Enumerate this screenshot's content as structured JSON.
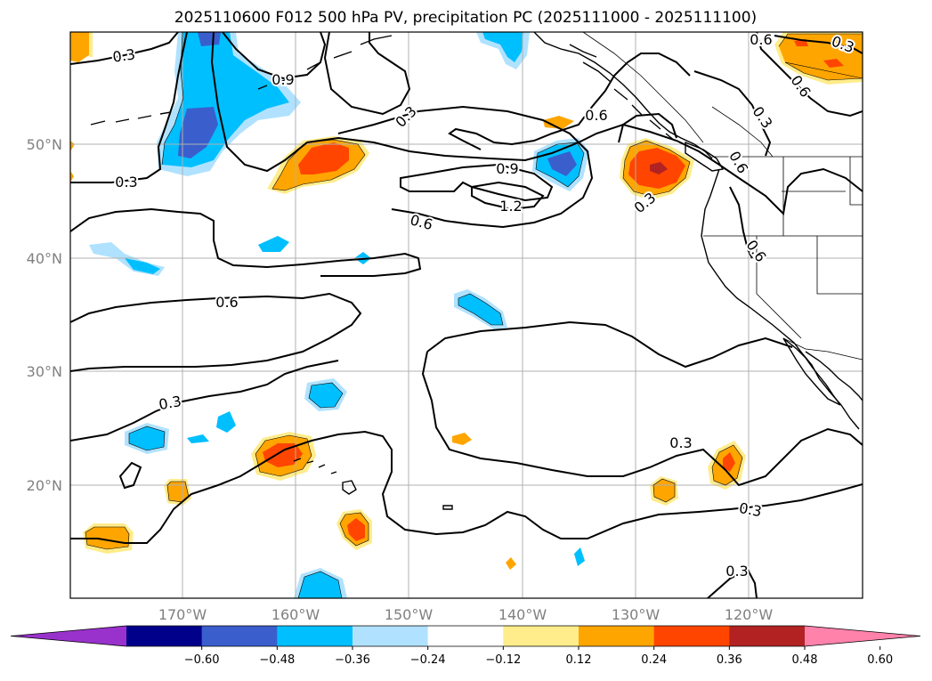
{
  "title": "2025110600 F012 500 hPa PV, precipitation PC (2025111000 - 2025111100)",
  "lat_labels": [
    "50°N",
    "40°N",
    "30°N",
    "20°N"
  ],
  "lon_labels": [
    "170°W",
    "160°W",
    "150°W",
    "140°W",
    "130°W",
    "120°W"
  ],
  "contour_labels": [
    "0.3",
    "0.9",
    "0.3",
    "0.6",
    "0.3",
    "0.3",
    "0.9",
    "1.2",
    "0.6",
    "0.6",
    "0.6",
    "0.3",
    "0.3",
    "0.6",
    "0.3",
    "0.6",
    "0.3",
    "0.3",
    "0.3",
    "0.6"
  ],
  "colorbar": {
    "ticks": [
      "−0.60",
      "−0.48",
      "−0.36",
      "−0.24",
      "−0.12",
      "0.12",
      "0.24",
      "0.36",
      "0.48",
      "0.60"
    ],
    "colors": [
      "#9932cc",
      "#00008b",
      "#3a5fcd",
      "#00bfff",
      "#b0e2ff",
      "#ffffff",
      "#ffec8b",
      "#ffa500",
      "#ff4500",
      "#b22222",
      "#ff82ab"
    ]
  },
  "colors": {
    "neg_strong": "#3a5fcd",
    "neg_mid": "#00bfff",
    "neg_weak": "#b0e2ff",
    "pos_weak": "#ffec8b",
    "pos_mid": "#ffa500",
    "pos_strong": "#ff4500",
    "pos_max": "#b22222"
  }
}
